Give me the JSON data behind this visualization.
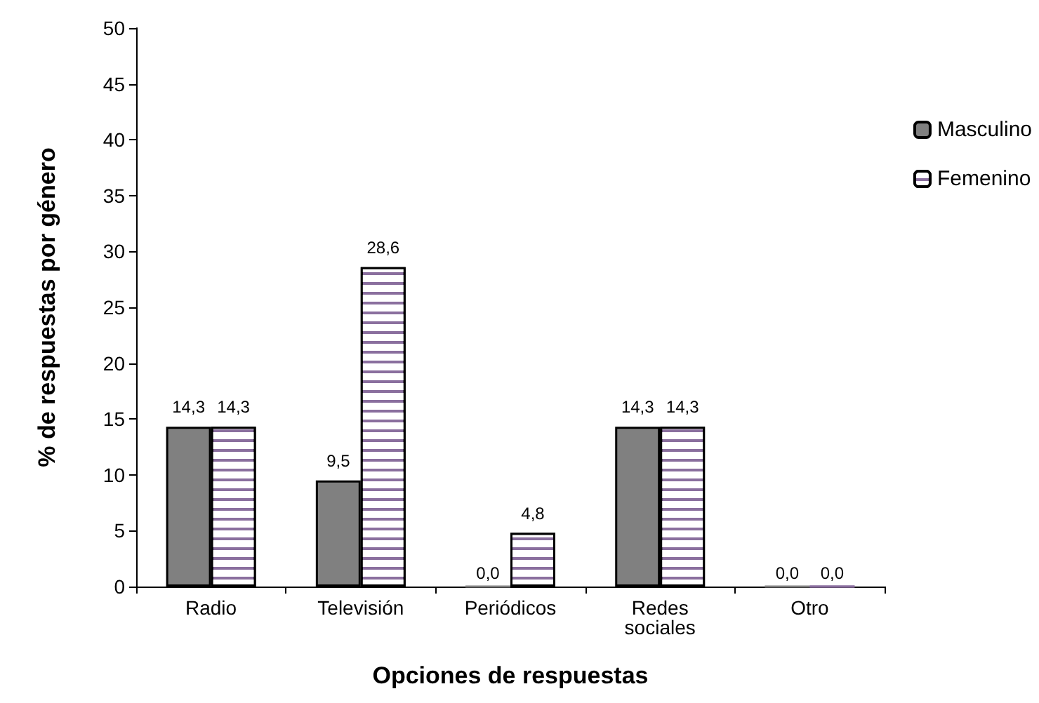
{
  "chart_data": {
    "type": "bar",
    "xlabel": "Opciones de respuestas",
    "ylabel": "% de respuestas por género",
    "categories": [
      "Radio",
      "Televisión",
      "Periódicos",
      "Redes\nsociales",
      "Otro"
    ],
    "series": [
      {
        "name": "Masculino",
        "color": "#808080",
        "values": [
          14.3,
          9.5,
          0.0,
          14.3,
          0.0
        ],
        "value_labels": [
          "14,3",
          "9,5",
          "0,0",
          "14,3",
          "0,0"
        ]
      },
      {
        "name": "Femenino",
        "color": "#8a6f9e",
        "values": [
          14.3,
          28.6,
          4.8,
          14.3,
          0.0
        ],
        "value_labels": [
          "14,3",
          "28,6",
          "4,8",
          "14,3",
          "0,0"
        ]
      }
    ],
    "ylim": [
      0,
      50
    ],
    "yticks": [
      0,
      5,
      10,
      15,
      20,
      25,
      30,
      35,
      40,
      45,
      50
    ],
    "grid": false,
    "legend": "right"
  }
}
